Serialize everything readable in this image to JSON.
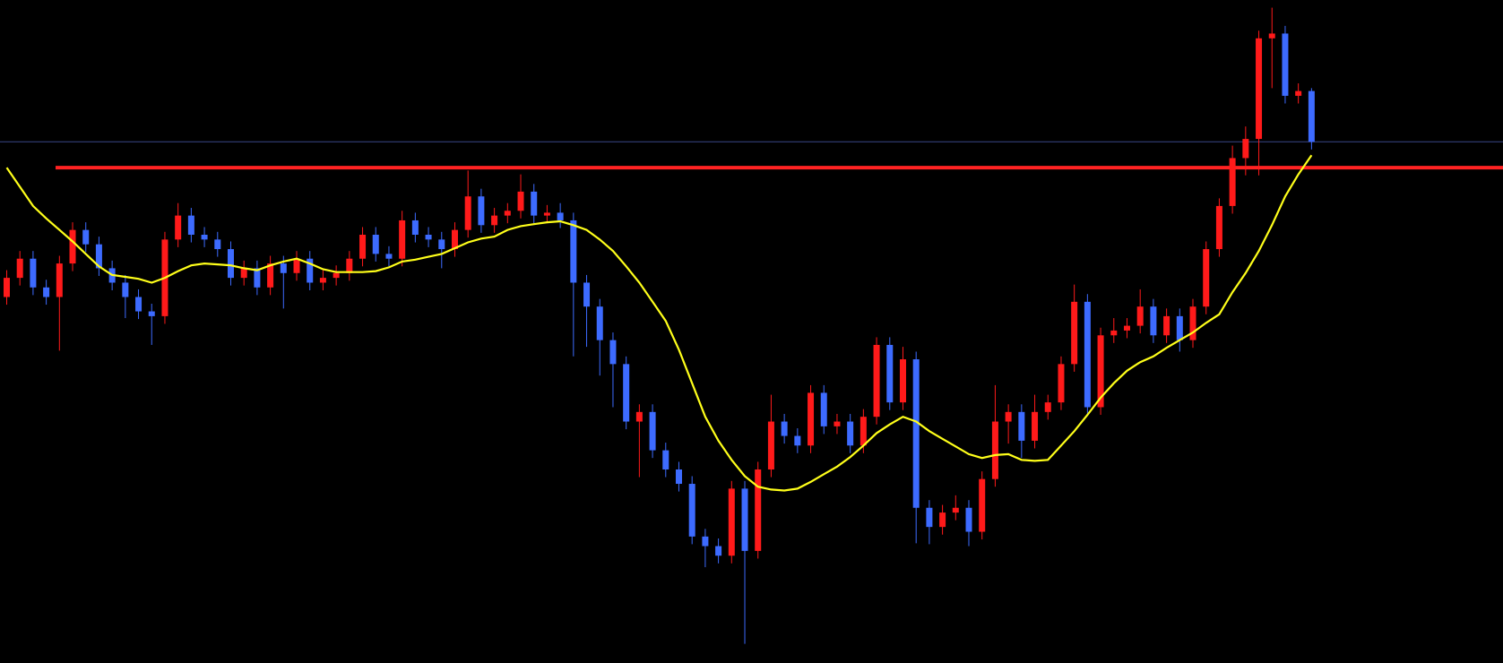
{
  "chart_data": {
    "type": "candlestick",
    "background": "#000000",
    "up_color": "#ff1a1a",
    "down_color": "#3d6bff",
    "ylim": [
      0,
      692
    ],
    "open": [
      382,
      402,
      422,
      392,
      382,
      417,
      452,
      437,
      412,
      397,
      382,
      367,
      362,
      442,
      467,
      447,
      442,
      432,
      402,
      412,
      392,
      417,
      407,
      422,
      397,
      402,
      407,
      422,
      447,
      427,
      422,
      462,
      447,
      442,
      432,
      452,
      487,
      457,
      467,
      472,
      492,
      467,
      470,
      462,
      397,
      372,
      337,
      312,
      252,
      262,
      222,
      202,
      187,
      132,
      122,
      112,
      182,
      117,
      202,
      252,
      237,
      227,
      282,
      247,
      252,
      227,
      257,
      332,
      272,
      317,
      162,
      142,
      157,
      162,
      137,
      192,
      252,
      262,
      232,
      262,
      272,
      312,
      377,
      267,
      342,
      347,
      352,
      372,
      342,
      362,
      337,
      372,
      432,
      477,
      527,
      547,
      652,
      657,
      592,
      597
    ],
    "high": [
      410,
      430,
      430,
      400,
      425,
      460,
      460,
      445,
      420,
      405,
      390,
      375,
      450,
      480,
      475,
      455,
      450,
      440,
      420,
      420,
      425,
      425,
      430,
      430,
      410,
      415,
      430,
      455,
      455,
      435,
      472,
      470,
      455,
      450,
      460,
      514,
      495,
      475,
      480,
      510,
      500,
      478,
      480,
      470,
      405,
      380,
      345,
      320,
      270,
      270,
      230,
      210,
      195,
      140,
      130,
      190,
      190,
      210,
      280,
      260,
      245,
      290,
      290,
      260,
      260,
      265,
      340,
      340,
      330,
      325,
      170,
      165,
      175,
      170,
      200,
      290,
      270,
      270,
      280,
      280,
      320,
      395,
      385,
      350,
      360,
      360,
      390,
      380,
      370,
      370,
      380,
      440,
      485,
      540,
      560,
      660,
      684,
      665,
      605,
      600
    ],
    "low": [
      374,
      394,
      384,
      374,
      326,
      409,
      429,
      404,
      389,
      360,
      359,
      332,
      354,
      434,
      439,
      434,
      424,
      394,
      394,
      384,
      384,
      370,
      399,
      389,
      389,
      394,
      399,
      414,
      419,
      414,
      414,
      439,
      434,
      412,
      424,
      444,
      449,
      449,
      459,
      464,
      459,
      459,
      454,
      320,
      330,
      300,
      267,
      244,
      194,
      214,
      194,
      179,
      124,
      100,
      104,
      104,
      20,
      109,
      194,
      229,
      219,
      219,
      239,
      239,
      219,
      219,
      249,
      264,
      264,
      125,
      124,
      134,
      149,
      122,
      129,
      184,
      229,
      214,
      224,
      254,
      264,
      304,
      259,
      259,
      334,
      339,
      344,
      334,
      334,
      325,
      329,
      364,
      424,
      469,
      509,
      509,
      600,
      584,
      584,
      536
    ],
    "close": [
      402,
      422,
      392,
      382,
      417,
      452,
      437,
      412,
      397,
      382,
      367,
      362,
      442,
      467,
      447,
      442,
      432,
      402,
      412,
      392,
      417,
      407,
      422,
      397,
      402,
      407,
      422,
      447,
      427,
      422,
      462,
      447,
      442,
      432,
      452,
      487,
      457,
      467,
      472,
      492,
      467,
      470,
      462,
      397,
      372,
      337,
      312,
      252,
      262,
      222,
      202,
      187,
      132,
      122,
      112,
      182,
      117,
      202,
      252,
      237,
      227,
      282,
      247,
      252,
      227,
      257,
      332,
      272,
      317,
      162,
      142,
      157,
      162,
      137,
      192,
      252,
      262,
      232,
      262,
      272,
      312,
      377,
      267,
      342,
      347,
      352,
      372,
      342,
      362,
      337,
      372,
      432,
      477,
      527,
      547,
      652,
      657,
      592,
      597,
      544
    ],
    "moving_average": {
      "color": "#ffff1a",
      "values": [
        517,
        497,
        477,
        464,
        452,
        440,
        427,
        414,
        405,
        403,
        401,
        397,
        402,
        409,
        415,
        417,
        416,
        415,
        412,
        410,
        415,
        419,
        422,
        417,
        411,
        408,
        408,
        408,
        409,
        413,
        419,
        421,
        424,
        427,
        433,
        439,
        443,
        445,
        452,
        456,
        458,
        460,
        461,
        457,
        452,
        442,
        430,
        414,
        397,
        377,
        357,
        327,
        292,
        257,
        232,
        212,
        195,
        184,
        181,
        180,
        182,
        189,
        197,
        205,
        215,
        227,
        240,
        249,
        257,
        252,
        242,
        234,
        226,
        218,
        214,
        217,
        218,
        212,
        211,
        212,
        227,
        242,
        259,
        277,
        292,
        305,
        314,
        320,
        329,
        337,
        345,
        355,
        364,
        387,
        407,
        430,
        457,
        487,
        510,
        530
      ]
    },
    "levels": [
      {
        "value": 517,
        "color": "#ff2222"
      },
      {
        "value": 544,
        "color": "#3a4788"
      }
    ]
  }
}
